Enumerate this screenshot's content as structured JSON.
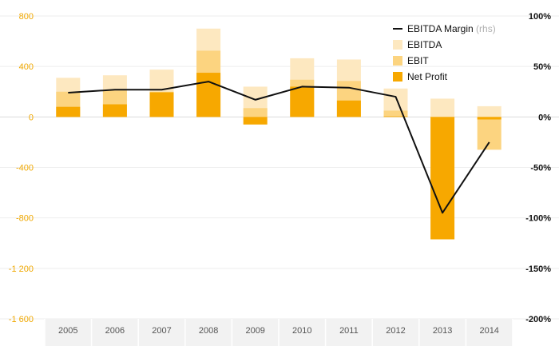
{
  "chart_data": {
    "type": "bar",
    "categories": [
      "2005",
      "2006",
      "2007",
      "2008",
      "2009",
      "2010",
      "2011",
      "2012",
      "2013",
      "2014"
    ],
    "series": [
      {
        "name": "EBITDA",
        "kind": "bar",
        "values": [
          310,
          330,
          375,
          700,
          240,
          465,
          455,
          225,
          145,
          85
        ],
        "color": "#fde8c0"
      },
      {
        "name": "EBIT",
        "kind": "bar",
        "values": [
          200,
          210,
          200,
          525,
          70,
          295,
          285,
          50,
          -10,
          -260
        ],
        "color": "#fcd480"
      },
      {
        "name": "Net Profit",
        "kind": "bar",
        "values": [
          80,
          100,
          195,
          350,
          -60,
          240,
          130,
          5,
          -970,
          -20
        ],
        "color": "#f7a800"
      },
      {
        "name": "EBITDA Margin",
        "name_note": "(rhs)",
        "kind": "line",
        "axis": "right",
        "values": [
          24,
          27,
          27,
          35,
          17,
          30,
          29,
          20,
          -95,
          -25
        ],
        "color": "#111111"
      }
    ],
    "left_axis": {
      "ylim": [
        -1600,
        800
      ],
      "ticks": [
        800,
        400,
        0,
        -400,
        -800,
        -1200,
        -1600
      ],
      "tick_labels": [
        "800",
        "400",
        "0",
        "-400",
        "-800",
        "-1 200",
        "-1 600"
      ],
      "color": "#f0a800"
    },
    "right_axis": {
      "ylim": [
        -200,
        100
      ],
      "ticks": [
        100,
        50,
        0,
        -50,
        -100,
        -150,
        -200
      ],
      "tick_labels": [
        "100%",
        "50%",
        "0%",
        "-50%",
        "-100%",
        "-150%",
        "-200%"
      ],
      "color": "#111111"
    },
    "legend_position": "top-right",
    "grid": true
  }
}
